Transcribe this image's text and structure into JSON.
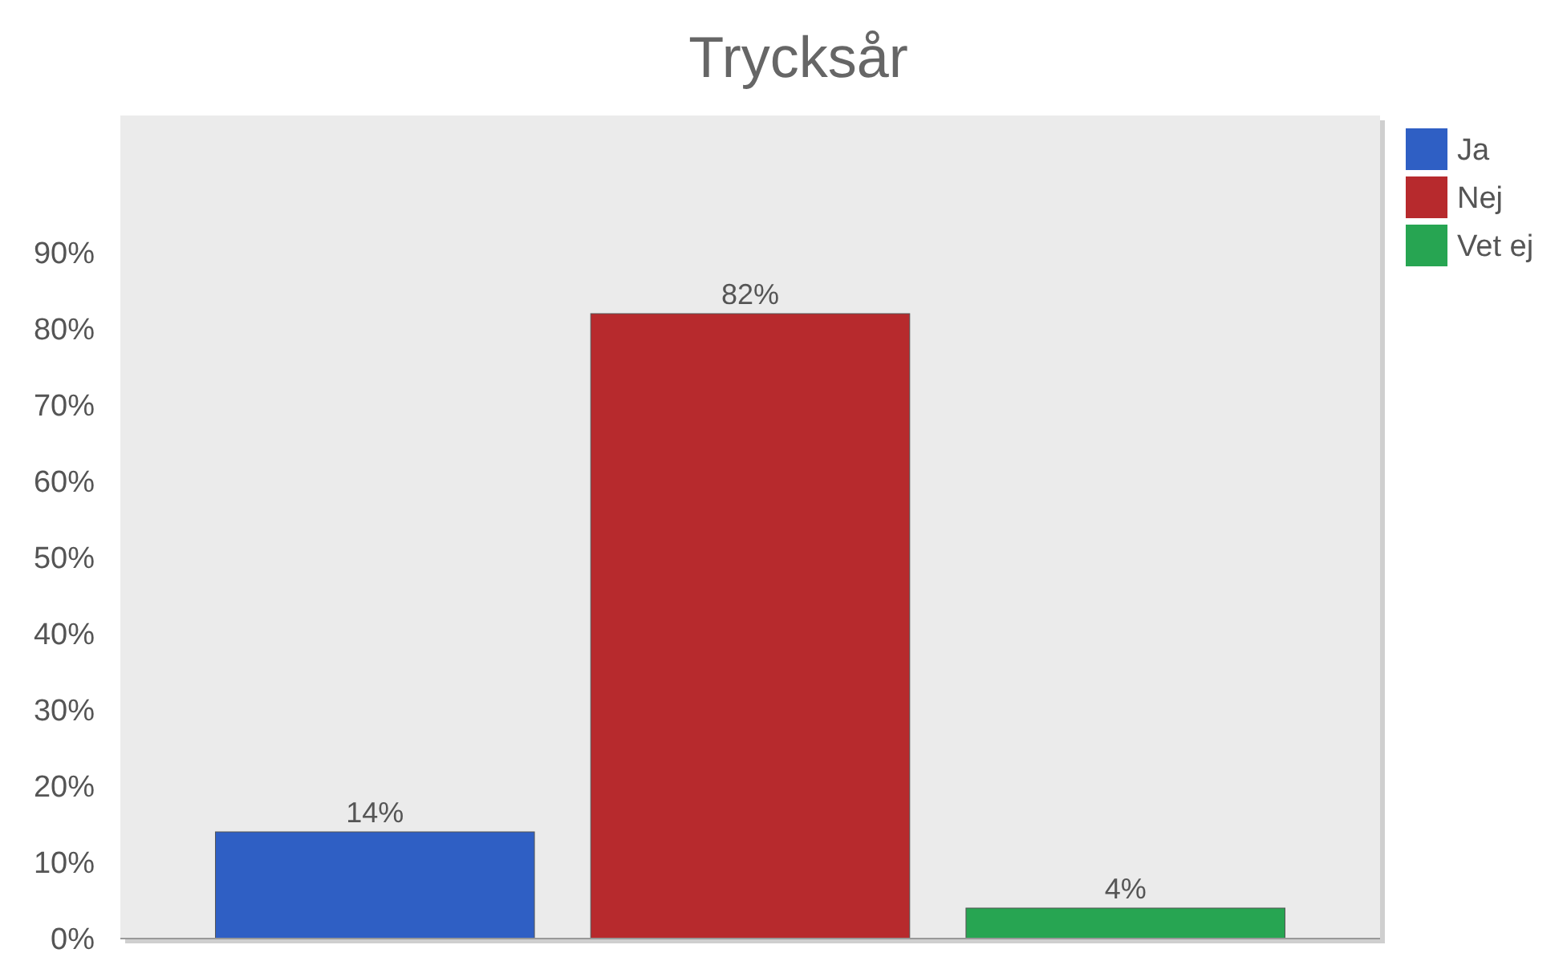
{
  "chart_data": {
    "type": "bar",
    "title": "Trycksår",
    "categories": [
      null
    ],
    "series": [
      {
        "name": "Ja",
        "color": "#2f5fc4",
        "values": [
          14
        ],
        "value_labels": [
          "14%"
        ]
      },
      {
        "name": "Nej",
        "color": "#b72a2d",
        "values": [
          82
        ],
        "value_labels": [
          "82%"
        ]
      },
      {
        "name": "Vet ej",
        "color": "#27a552",
        "values": [
          4
        ],
        "value_labels": [
          "4%"
        ]
      }
    ],
    "ylim": [
      0,
      108
    ],
    "yticks": [
      {
        "value": 0,
        "label": "0%"
      },
      {
        "value": 10,
        "label": "10%"
      },
      {
        "value": 20,
        "label": "20%"
      },
      {
        "value": 30,
        "label": "30%"
      },
      {
        "value": 40,
        "label": "40%"
      },
      {
        "value": 50,
        "label": "50%"
      },
      {
        "value": 60,
        "label": "60%"
      },
      {
        "value": 70,
        "label": "70%"
      },
      {
        "value": 80,
        "label": "80%"
      },
      {
        "value": 90,
        "label": "90%"
      }
    ],
    "grid": false,
    "legend": "top right"
  }
}
